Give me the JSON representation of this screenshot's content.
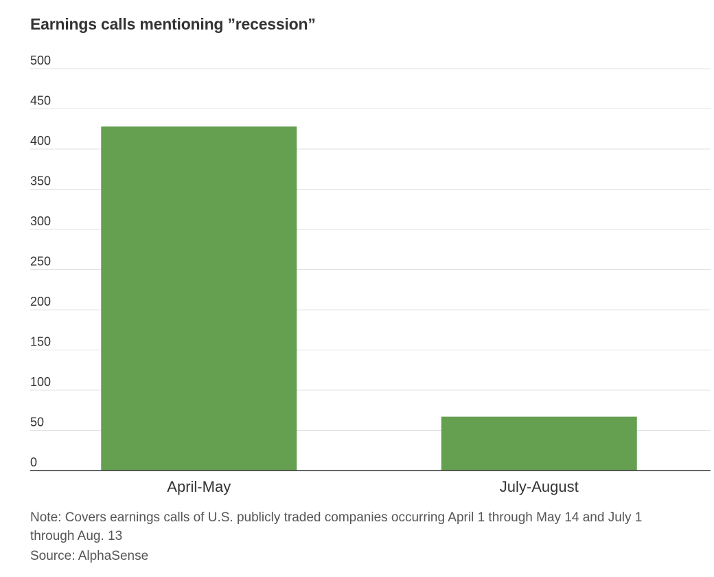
{
  "title": "Earnings calls mentioning ”recession”",
  "note": "Note: Covers earnings calls of U.S. publicly traded companies occurring April 1 through May 14 and July 1 through Aug. 13",
  "source": "Source: AlphaSense",
  "colors": {
    "bar": "#659f50",
    "grid": "#e0e0e0",
    "axis": "#333333",
    "text": "#333333"
  },
  "chart_data": {
    "type": "bar",
    "categories": [
      "April-May",
      "July-August"
    ],
    "values": [
      428,
      67
    ],
    "ylim": [
      0,
      500
    ],
    "yticks": [
      0,
      50,
      100,
      150,
      200,
      250,
      300,
      350,
      400,
      450,
      500
    ],
    "grid": true,
    "xlabel": "",
    "ylabel": ""
  }
}
